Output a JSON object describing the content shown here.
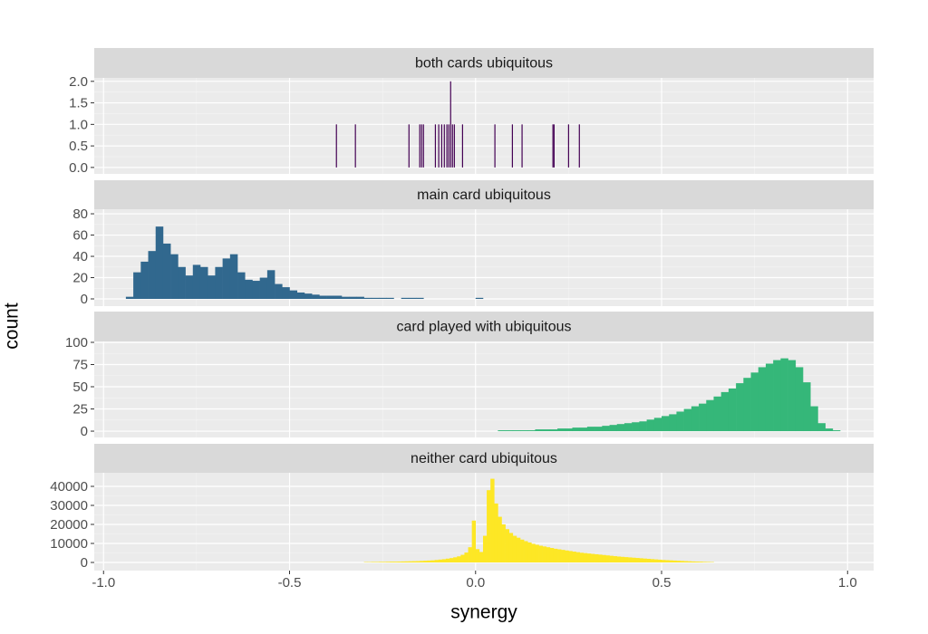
{
  "shared": {
    "xlabel": "synergy",
    "ylabel": "count"
  },
  "chart_data": [
    {
      "type": "bar",
      "title": "both cards ubiquitous",
      "color": "#440154",
      "grid": true,
      "x": [
        -0.374,
        -0.323,
        -0.179,
        -0.15,
        -0.145,
        -0.14,
        -0.108,
        -0.099,
        -0.091,
        -0.084,
        -0.077,
        -0.072,
        -0.067,
        -0.062,
        -0.057,
        -0.035,
        0.052,
        0.099,
        0.125,
        0.208,
        0.211,
        0.25,
        0.279
      ],
      "values": [
        1,
        1,
        1,
        1,
        1,
        1,
        1,
        1,
        1,
        1,
        1,
        1,
        2,
        1,
        1,
        1,
        1,
        1,
        1,
        1,
        1,
        1,
        1
      ],
      "xlim": [
        -1.025,
        1.07
      ],
      "xticks": [
        {
          "value": -1,
          "label": "-1.0"
        },
        -0.5,
        {
          "value": 0,
          "label": "0.0"
        },
        0.5,
        {
          "value": 1,
          "label": "1.0"
        }
      ],
      "ylim": [
        -0.15,
        2.08
      ],
      "yticks": [
        {
          "value": 0,
          "label": "0.0"
        },
        0.5,
        {
          "value": 1,
          "label": "1.0"
        },
        1.5,
        {
          "value": 2,
          "label": "2.0"
        }
      ]
    },
    {
      "type": "histogram",
      "title": "main card ubiquitous",
      "color": "#31688e",
      "grid": true,
      "bins": [
        -0.94,
        -0.92,
        -0.9,
        -0.88,
        -0.86,
        -0.84,
        -0.82,
        -0.8,
        -0.78,
        -0.76,
        -0.74,
        -0.72,
        -0.7,
        -0.68,
        -0.66,
        -0.64,
        -0.62,
        -0.6,
        -0.58,
        -0.56,
        -0.54,
        -0.52,
        -0.5,
        -0.48,
        -0.46,
        -0.44,
        -0.42,
        -0.4,
        -0.38,
        -0.36,
        -0.34,
        -0.32,
        -0.3,
        -0.28,
        -0.26,
        -0.24,
        -0.22,
        -0.2,
        -0.18,
        -0.16,
        -0.14,
        -0.12,
        -0.1,
        -0.08,
        -0.06,
        -0.04,
        -0.02,
        0.0,
        0.02
      ],
      "values": [
        2,
        25,
        35,
        45,
        68,
        52,
        42,
        30,
        22,
        32,
        30,
        22,
        30,
        38,
        42,
        25,
        18,
        17,
        20,
        27,
        14,
        11,
        8,
        6,
        5,
        4,
        3,
        3,
        3,
        2,
        2,
        2,
        1,
        1,
        1,
        1,
        0,
        1,
        1,
        1,
        0,
        0,
        0,
        0,
        0,
        0,
        0,
        1
      ],
      "xlim": [
        -1.025,
        1.07
      ],
      "xticks": [
        {
          "value": -1,
          "label": "-1.0"
        },
        -0.5,
        {
          "value": 0,
          "label": "0.0"
        },
        0.5,
        {
          "value": 1,
          "label": "1.0"
        }
      ],
      "ylim": [
        -6.8,
        84.3
      ],
      "yticks": [
        0,
        20,
        40,
        60,
        80
      ]
    },
    {
      "type": "histogram",
      "title": "card played with ubiquitous",
      "color": "#35b779",
      "grid": true,
      "bins": [
        0.06,
        0.08,
        0.1,
        0.12,
        0.14,
        0.16,
        0.18,
        0.2,
        0.22,
        0.24,
        0.26,
        0.28,
        0.3,
        0.32,
        0.34,
        0.36,
        0.38,
        0.4,
        0.42,
        0.44,
        0.46,
        0.48,
        0.5,
        0.52,
        0.54,
        0.56,
        0.58,
        0.6,
        0.62,
        0.64,
        0.66,
        0.68,
        0.7,
        0.72,
        0.74,
        0.76,
        0.78,
        0.8,
        0.82,
        0.84,
        0.86,
        0.88,
        0.9,
        0.92,
        0.94,
        0.96,
        0.98
      ],
      "values": [
        1,
        1,
        1,
        1,
        1,
        2,
        2,
        2,
        3,
        3,
        4,
        4,
        5,
        5,
        6,
        7,
        8,
        9,
        10,
        11,
        13,
        15,
        17,
        19,
        22,
        25,
        28,
        31,
        35,
        39,
        44,
        48,
        54,
        60,
        66,
        72,
        76,
        80,
        82,
        80,
        72,
        55,
        28,
        9,
        3,
        1
      ],
      "xlim": [
        -1.025,
        1.07
      ],
      "xticks": [
        {
          "value": -1,
          "label": "-1.0"
        },
        -0.5,
        {
          "value": 0,
          "label": "0.0"
        },
        0.5,
        {
          "value": 1,
          "label": "1.0"
        }
      ],
      "ylim": [
        -7.1,
        101
      ],
      "yticks": [
        0,
        25,
        50,
        75,
        100
      ]
    },
    {
      "type": "histogram",
      "title": "neither card ubiquitous",
      "color": "#fde725",
      "grid": true,
      "bins": [
        -0.3,
        -0.29,
        -0.28,
        -0.27,
        -0.26,
        -0.25,
        -0.24,
        -0.23,
        -0.22,
        -0.21,
        -0.2,
        -0.19,
        -0.18,
        -0.17,
        -0.16,
        -0.15,
        -0.14,
        -0.13,
        -0.12,
        -0.11,
        -0.1,
        -0.09,
        -0.08,
        -0.07,
        -0.06,
        -0.05,
        -0.04,
        -0.03,
        -0.02,
        -0.01,
        0.0,
        0.01,
        0.02,
        0.03,
        0.04,
        0.05,
        0.06,
        0.07,
        0.08,
        0.09,
        0.1,
        0.11,
        0.12,
        0.13,
        0.14,
        0.15,
        0.16,
        0.17,
        0.18,
        0.19,
        0.2,
        0.21,
        0.22,
        0.23,
        0.24,
        0.25,
        0.26,
        0.27,
        0.28,
        0.29,
        0.3,
        0.31,
        0.32,
        0.33,
        0.34,
        0.35,
        0.36,
        0.37,
        0.38,
        0.39,
        0.4,
        0.41,
        0.42,
        0.43,
        0.44,
        0.45,
        0.46,
        0.47,
        0.48,
        0.49,
        0.5,
        0.51,
        0.52,
        0.53,
        0.54,
        0.55,
        0.56,
        0.57,
        0.58,
        0.59,
        0.6,
        0.61,
        0.62,
        0.63,
        0.64
      ],
      "values": [
        200,
        200,
        250,
        250,
        300,
        300,
        350,
        400,
        400,
        450,
        500,
        550,
        600,
        650,
        700,
        800,
        900,
        1000,
        1100,
        1300,
        1500,
        1700,
        2000,
        2300,
        2700,
        3200,
        4000,
        5200,
        8000,
        22000,
        7000,
        5500,
        14000,
        38000,
        44000,
        31000,
        24000,
        20000,
        17500,
        15500,
        14000,
        13000,
        12000,
        11200,
        10500,
        9800,
        9300,
        8800,
        8400,
        8000,
        7600,
        7200,
        6900,
        6600,
        6300,
        6000,
        5700,
        5400,
        5100,
        4900,
        4700,
        4500,
        4300,
        4100,
        3900,
        3700,
        3500,
        3300,
        3100,
        2950,
        2800,
        2650,
        2500,
        2350,
        2200,
        2050,
        1900,
        1750,
        1600,
        1450,
        1300,
        1200,
        1100,
        1000,
        900,
        800,
        700,
        600,
        500,
        450,
        400,
        300,
        250,
        200
      ],
      "xlim": [
        -1.025,
        1.07
      ],
      "xticks": [
        {
          "value": -1,
          "label": "-1.0"
        },
        -0.5,
        {
          "value": 0,
          "label": "0.0"
        },
        0.5,
        {
          "value": 1,
          "label": "1.0"
        }
      ],
      "ylim": [
        -4290,
        47140
      ],
      "yticks": [
        0,
        10000,
        20000,
        30000,
        40000
      ]
    }
  ]
}
